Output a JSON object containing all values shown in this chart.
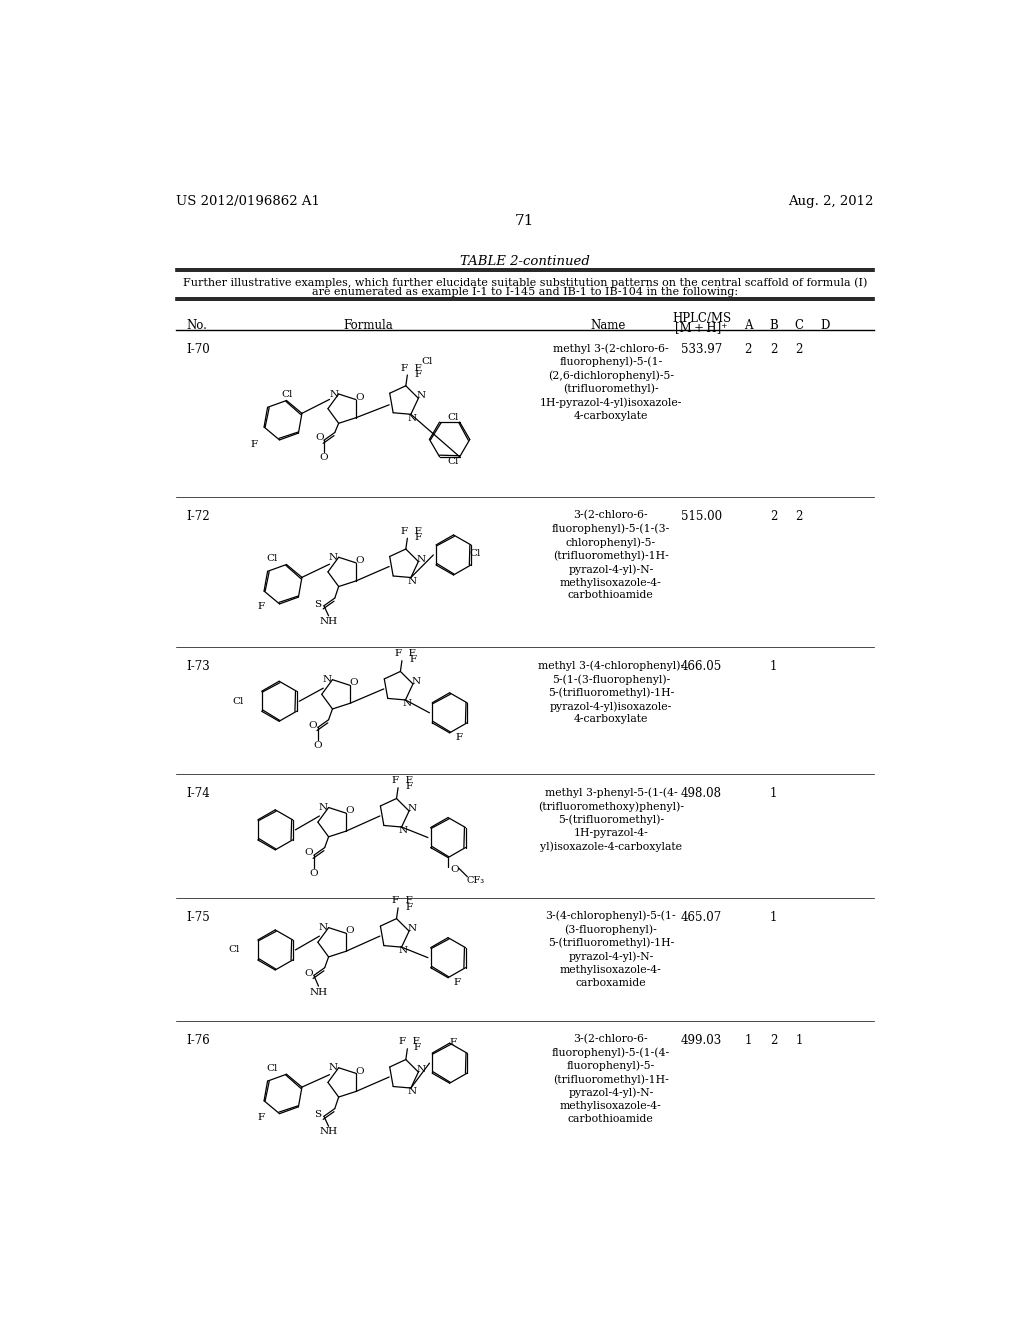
{
  "background_color": "#ffffff",
  "page_number": "71",
  "header_left": "US 2012/0196862 A1",
  "header_right": "Aug. 2, 2012",
  "table_title": "TABLE 2-continued",
  "table_subtitle_line1": "Further illustrative examples, which further elucidate suitable substitution patterns on the central scaffold of formula (I)",
  "table_subtitle_line2": "are enumerated as example I-1 to I-145 and IB-1 to IB-104 in the following:",
  "rows": [
    {
      "no": "I-70",
      "name": "methyl 3-(2-chloro-6-\nfluorophenyl)-5-(1-\n(2,6-dichlorophenyl)-5-\n(trifluoromethyl)-\n1H-pyrazol-4-yl)isoxazole-\n4-carboxylate",
      "mz": "533.97",
      "A": "2",
      "B": "2",
      "C": "2",
      "D": ""
    },
    {
      "no": "I-72",
      "name": "3-(2-chloro-6-\nfluorophenyl)-5-(1-(3-\nchlorophenyl)-5-\n(trifluoromethyl)-1H-\npyrazol-4-yl)-N-\nmethylisoxazole-4-\ncarbothioamide",
      "mz": "515.00",
      "A": "",
      "B": "2",
      "C": "2",
      "D": ""
    },
    {
      "no": "I-73",
      "name": "methyl 3-(4-chlorophenyl)-\n5-(1-(3-fluorophenyl)-\n5-(trifluoromethyl)-1H-\npyrazol-4-yl)isoxazole-\n4-carboxylate",
      "mz": "466.05",
      "A": "",
      "B": "1",
      "C": "",
      "D": ""
    },
    {
      "no": "I-74",
      "name": "methyl 3-phenyl-5-(1-(4-\n(trifluoromethoxy)phenyl)-\n5-(trifluoromethyl)-\n1H-pyrazol-4-\nyl)isoxazole-4-carboxylate",
      "mz": "498.08",
      "A": "",
      "B": "1",
      "C": "",
      "D": ""
    },
    {
      "no": "I-75",
      "name": "3-(4-chlorophenyl)-5-(1-\n(3-fluorophenyl)-\n5-(trifluoromethyl)-1H-\npyrazol-4-yl)-N-\nmethylisoxazole-4-\ncarboxamide",
      "mz": "465.07",
      "A": "",
      "B": "1",
      "C": "",
      "D": ""
    },
    {
      "no": "I-76",
      "name": "3-(2-chloro-6-\nfluorophenyl)-5-(1-(4-\nfluorophenyl)-5-\n(trifluoromethyl)-1H-\npyrazol-4-yl)-N-\nmethylisoxazole-4-\ncarbothioamide",
      "mz": "499.03",
      "A": "1",
      "B": "2",
      "C": "1",
      "D": ""
    }
  ]
}
